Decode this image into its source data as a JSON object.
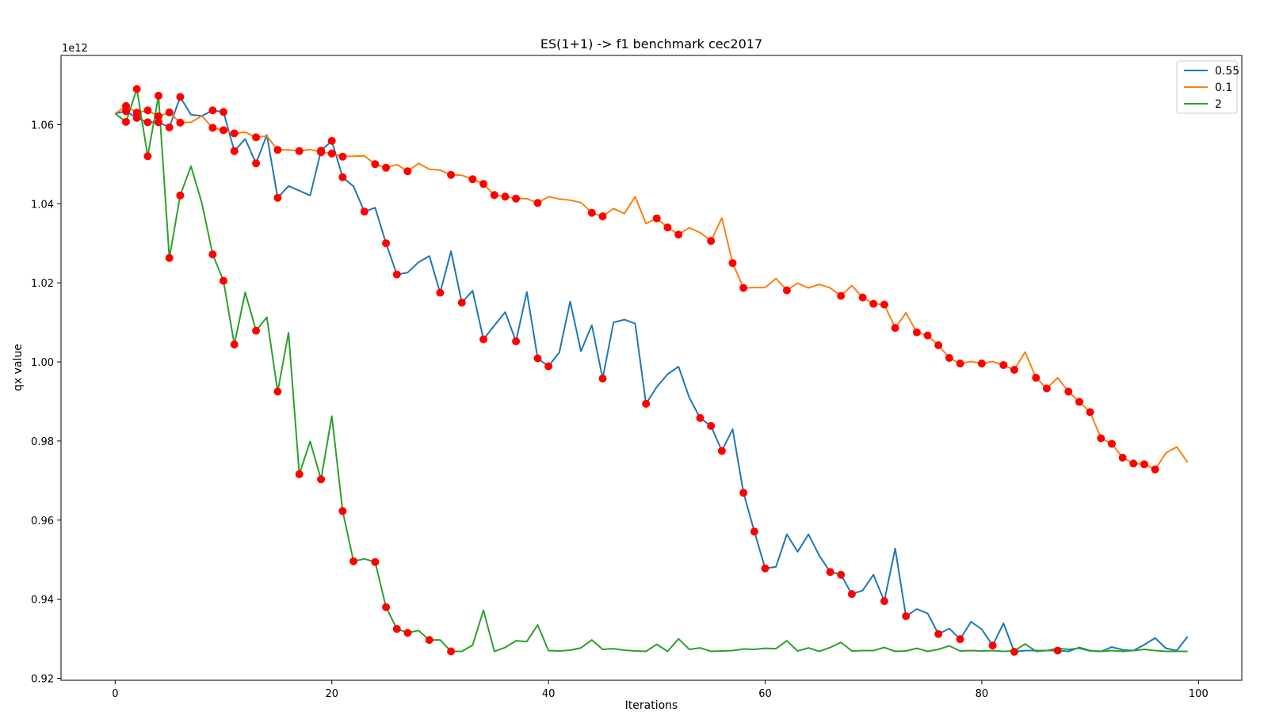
{
  "chart_data": {
    "type": "line",
    "title": "ES(1+1) -> f1 benchmark cec2017",
    "xlabel": "Iterations",
    "ylabel": "qx value",
    "y_offset_label": "1e12",
    "y_scale": 1000000000000.0,
    "xlim": [
      -5,
      104
    ],
    "ylim": [
      0.9195,
      1.0775
    ],
    "xticks": [
      0,
      20,
      40,
      60,
      80,
      100
    ],
    "yticks": [
      0.92,
      0.94,
      0.96,
      0.98,
      1.0,
      1.02,
      1.04,
      1.06
    ],
    "ytick_labels": [
      "0.92",
      "0.94",
      "0.96",
      "0.98",
      "1.00",
      "1.02",
      "1.04",
      "1.06"
    ],
    "legend_position": "top-right",
    "marker_color": "#ff0000",
    "series": [
      {
        "name": "0.55",
        "color": "#1f77b4",
        "values": [
          1.0628,
          1.0634,
          1.0617,
          1.0606,
          1.0606,
          1.0593,
          1.067,
          1.0625,
          1.0622,
          1.0636,
          1.0632,
          1.0533,
          1.0564,
          1.0502,
          1.0574,
          1.0415,
          1.0445,
          1.0433,
          1.0421,
          1.0534,
          1.0559,
          1.0467,
          1.0444,
          1.038,
          1.039,
          1.03,
          1.0221,
          1.0226,
          1.0252,
          1.0268,
          1.0175,
          1.028,
          1.015,
          1.018,
          1.0057,
          1.0092,
          1.0126,
          1.0052,
          1.0177,
          1.0009,
          0.9989,
          1.0024,
          1.0153,
          1.0027,
          1.0093,
          0.9958,
          1.01,
          1.0107,
          1.0097,
          0.9894,
          0.9937,
          0.9969,
          0.9988,
          0.991,
          0.9858,
          0.9838,
          0.9775,
          0.983,
          0.9669,
          0.9571,
          0.9478,
          0.9482,
          0.9564,
          0.952,
          0.9564,
          0.951,
          0.9469,
          0.9462,
          0.9413,
          0.9422,
          0.9462,
          0.9395,
          0.9528,
          0.9357,
          0.9375,
          0.9364,
          0.9312,
          0.9326,
          0.9299,
          0.9343,
          0.9324,
          0.9283,
          0.9339,
          0.9267,
          0.927,
          0.927,
          0.927,
          0.927,
          0.9268,
          0.9278,
          0.927,
          0.9268,
          0.9279,
          0.9272,
          0.927,
          0.9285,
          0.9302,
          0.9276,
          0.927,
          0.9306
        ],
        "markers": [
          1,
          2,
          3,
          4,
          5,
          6,
          9,
          10,
          11,
          13,
          15,
          19,
          20,
          21,
          23,
          25,
          26,
          30,
          32,
          34,
          37,
          39,
          40,
          45,
          49,
          54,
          55,
          56,
          58,
          59,
          60,
          66,
          67,
          68,
          71,
          73,
          76,
          78,
          81,
          83,
          87
        ]
      },
      {
        "name": "0.1",
        "color": "#ff7f0e",
        "values": [
          1.0628,
          1.0647,
          1.063,
          1.0636,
          1.0621,
          1.0631,
          1.0605,
          1.0606,
          1.0622,
          1.0592,
          1.0586,
          1.0578,
          1.0581,
          1.0568,
          1.0571,
          1.0536,
          1.0536,
          1.0533,
          1.0537,
          1.053,
          1.0527,
          1.0519,
          1.052,
          1.0521,
          1.05,
          1.0491,
          1.0499,
          1.0482,
          1.0502,
          1.0487,
          1.0485,
          1.0473,
          1.0472,
          1.0462,
          1.045,
          1.0422,
          1.0418,
          1.0413,
          1.0413,
          1.0402,
          1.0418,
          1.0412,
          1.0409,
          1.0403,
          1.0377,
          1.0368,
          1.0388,
          1.0375,
          1.0418,
          1.035,
          1.0363,
          1.034,
          1.0322,
          1.0339,
          1.0327,
          1.0306,
          1.0364,
          1.025,
          1.0187,
          1.0188,
          1.0188,
          1.0211,
          1.0181,
          1.0199,
          1.0187,
          1.0196,
          1.0187,
          1.0167,
          1.0193,
          1.0163,
          1.0147,
          1.0145,
          1.0086,
          1.0124,
          1.0075,
          1.0067,
          1.0042,
          1.001,
          0.9996,
          1.0001,
          0.9996,
          1.0001,
          0.9992,
          0.998,
          1.0025,
          0.996,
          0.9933,
          0.996,
          0.9925,
          0.9899,
          0.9873,
          0.9807,
          0.9793,
          0.9758,
          0.9743,
          0.9741,
          0.9728,
          0.977,
          0.9785,
          0.9746
        ],
        "markers": [
          1,
          2,
          3,
          4,
          5,
          6,
          9,
          10,
          11,
          13,
          15,
          17,
          19,
          20,
          21,
          24,
          25,
          27,
          31,
          33,
          34,
          35,
          36,
          37,
          39,
          44,
          45,
          50,
          51,
          52,
          55,
          57,
          58,
          62,
          67,
          69,
          70,
          71,
          72,
          74,
          75,
          76,
          77,
          78,
          80,
          82,
          83,
          85,
          86,
          88,
          89,
          90,
          91,
          92,
          93,
          94,
          95,
          96
        ]
      },
      {
        "name": "2",
        "color": "#2ca02c",
        "values": [
          1.0628,
          1.0607,
          1.069,
          1.052,
          1.0673,
          1.0263,
          1.0421,
          1.0495,
          1.0402,
          1.0272,
          1.0205,
          1.0044,
          1.0176,
          1.0079,
          1.0113,
          0.9925,
          1.0074,
          0.9716,
          0.9799,
          0.9703,
          0.9863,
          0.9623,
          0.9496,
          0.9502,
          0.9494,
          0.938,
          0.9325,
          0.9315,
          0.9321,
          0.9297,
          0.9297,
          0.9268,
          0.9268,
          0.9284,
          0.9372,
          0.9268,
          0.9278,
          0.9295,
          0.9293,
          0.9335,
          0.927,
          0.9269,
          0.9271,
          0.9277,
          0.9297,
          0.9273,
          0.9275,
          0.9271,
          0.9269,
          0.9268,
          0.9286,
          0.9268,
          0.93,
          0.9273,
          0.9277,
          0.9268,
          0.9269,
          0.927,
          0.9274,
          0.9273,
          0.9276,
          0.9275,
          0.9295,
          0.9269,
          0.9277,
          0.9268,
          0.9278,
          0.9291,
          0.9269,
          0.927,
          0.927,
          0.9278,
          0.9268,
          0.9269,
          0.9276,
          0.9268,
          0.9273,
          0.9282,
          0.9269,
          0.927,
          0.9269,
          0.927,
          0.9268,
          0.9269,
          0.9287,
          0.9268,
          0.927,
          0.9276,
          0.9273,
          0.9276,
          0.9269,
          0.9268,
          0.927,
          0.9268,
          0.927,
          0.9273,
          0.927,
          0.9268,
          0.9268,
          0.9268
        ],
        "markers": [
          1,
          2,
          3,
          4,
          5,
          6,
          9,
          10,
          11,
          13,
          15,
          17,
          19,
          21,
          22,
          24,
          25,
          26,
          27,
          29,
          31
        ]
      }
    ]
  }
}
